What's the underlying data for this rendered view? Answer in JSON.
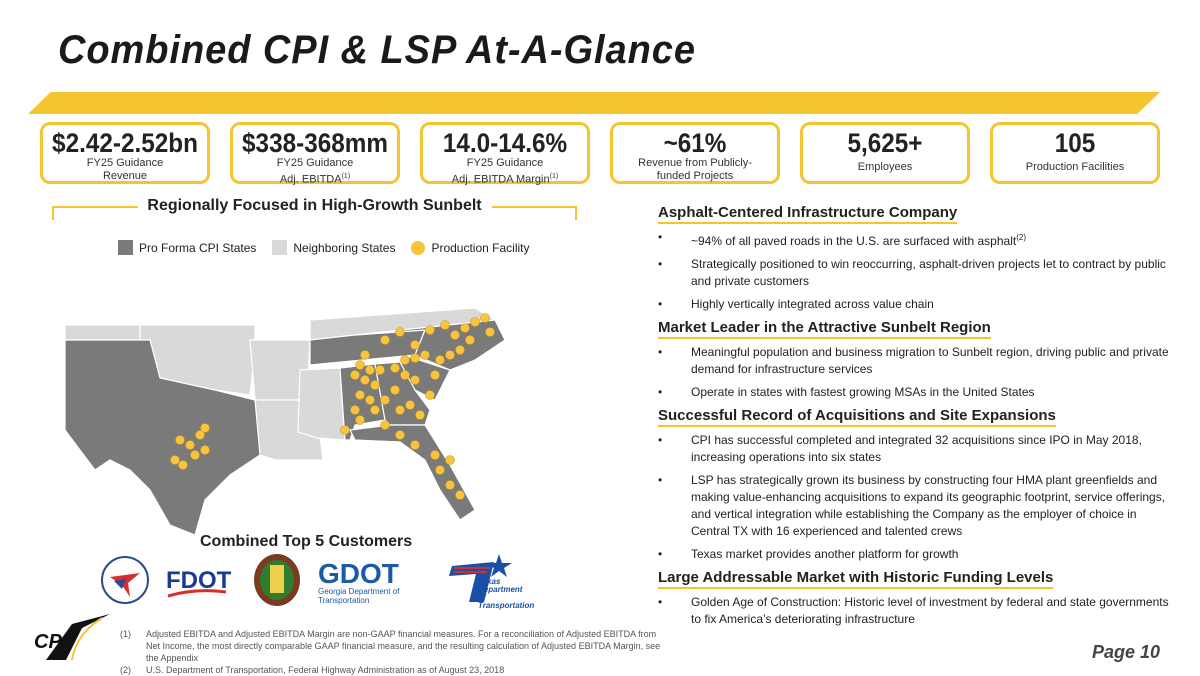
{
  "title": "Combined CPI & LSP At-A-Glance",
  "accent": "#f5c431",
  "kpis": [
    {
      "value": "$2.42-2.52bn",
      "l1": "FY25 Guidance",
      "l2": "Revenue",
      "sup": ""
    },
    {
      "value": "$338-368mm",
      "l1": "FY25 Guidance",
      "l2": "Adj. EBITDA",
      "sup": "(1)"
    },
    {
      "value": "14.0-14.6%",
      "l1": "FY25 Guidance",
      "l2": "Adj. EBITDA Margin",
      "sup": "(1)"
    },
    {
      "value": "~61%",
      "l1": "Revenue from Publicly-",
      "l2": "funded Projects",
      "sup": ""
    },
    {
      "value": "5,625+",
      "l1": "",
      "l2": "Employees",
      "sup": ""
    },
    {
      "value": "105",
      "l1": "",
      "l2": "Production Facilities",
      "sup": ""
    }
  ],
  "map": {
    "title": "Regionally Focused in High-Growth Sunbelt",
    "legend": {
      "cpi": "Pro Forma CPI States",
      "neighbor": "Neighboring States",
      "facility": "Production Facility"
    },
    "colors": {
      "cpi": "#7a7a7a",
      "neighbor": "#d9d9d9",
      "facility": "#f8c440"
    }
  },
  "customers": {
    "title": "Combined Top 5 Customers",
    "logos": [
      "NCDOT",
      "FDOT",
      "ALDOT",
      "GDOT",
      "Texas Department of Transportation"
    ],
    "gdot_sub": "Georgia Department of Transportation",
    "txdot_text": "Texas Department of Transportation"
  },
  "sections": [
    {
      "title": "Asphalt-Centered Infrastructure Company",
      "items": [
        {
          "text": "~94% of all paved roads in the U.S. are surfaced with asphalt",
          "sup": "(2)"
        },
        {
          "text": "Strategically positioned to win reoccurring, asphalt-driven projects let to contract by public and private customers"
        },
        {
          "text": "Highly vertically integrated across value chain"
        }
      ]
    },
    {
      "title": "Market Leader in the Attractive Sunbelt Region",
      "items": [
        {
          "text": "Meaningful population and business migration to Sunbelt region, driving public and private demand for infrastructure services"
        },
        {
          "text": "Operate in states with fastest growing MSAs in the United States"
        }
      ]
    },
    {
      "title": "Successful Record of Acquisitions and Site Expansions",
      "items": [
        {
          "text": "CPI has successful completed and integrated 32 acquisitions since IPO in May 2018, increasing operations into six states"
        },
        {
          "text": "LSP has strategically grown its business by constructing four HMA plant greenfields and making value-enhancing acquisitions to expand its geographic footprint, service offerings, and vertical integration while establishing the Company as the employer of choice in Central TX with 16 experienced and talented crews"
        },
        {
          "text": "Texas market provides another platform for growth"
        }
      ]
    },
    {
      "title": "Large Addressable Market with Historic Funding Levels",
      "items": [
        {
          "text": "Golden Age of Construction: Historic level of investment by federal and state governments to fix America’s deteriorating infrastructure"
        }
      ]
    }
  ],
  "footnotes": [
    {
      "n": "(1)",
      "text": "Adjusted EBITDA and Adjusted EBITDA Margin are non-GAAP financial measures. For a reconciliation of Adjusted EBITDA from Net Income, the most directly comparable GAAP financial measure, and the resulting calculation of Adjusted EBITDA Margin, see the Appendix"
    },
    {
      "n": "(2)",
      "text": "U.S. Department of Transportation, Federal Highway Administration as of August 23, 2018"
    }
  ],
  "logo": "CPI",
  "page": "Page 10"
}
